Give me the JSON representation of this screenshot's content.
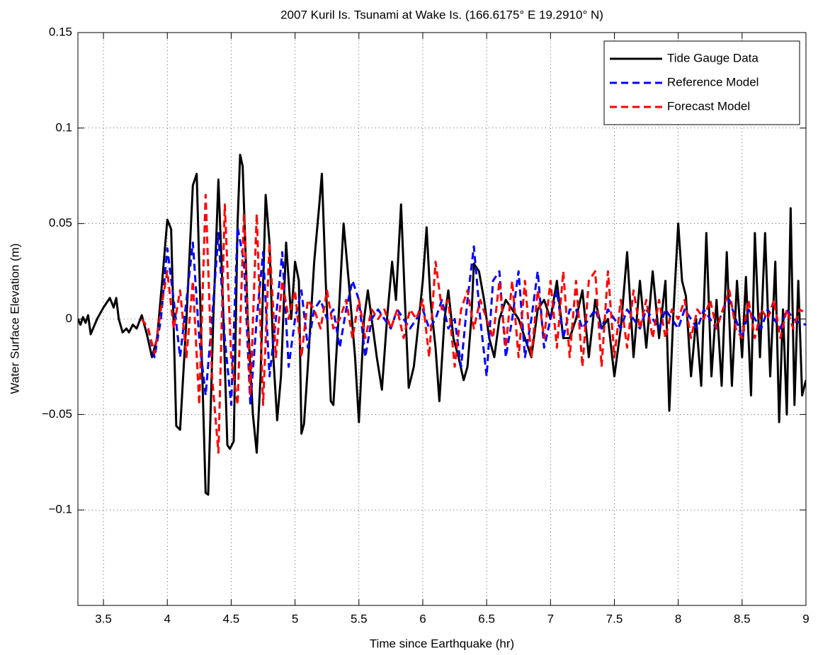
{
  "chart_data": {
    "type": "line",
    "title": "2007 Kuril Is. Tsunami at Wake Is. (166.6175° E 19.2910° N)",
    "x_label": "Time since Earthquake (hr)",
    "y_label": "Water Surface Elevation (m)",
    "xlim": [
      3.3,
      9
    ],
    "xticks": [
      3.5,
      4,
      4.5,
      5,
      5.5,
      6,
      6.5,
      7,
      7.5,
      8,
      8.5,
      9
    ],
    "ylim": [
      -0.15,
      0.15
    ],
    "yticks": [
      {
        "value": -0.1,
        "label": "−0.1"
      },
      {
        "value": -0.05,
        "label": "−0.05"
      },
      0,
      0.05,
      0.1,
      0.15
    ],
    "grid": true,
    "legend": "northeast",
    "series": [
      {
        "name": "Tide Gauge Data",
        "color": "#000000",
        "style": "solid",
        "x": [
          3.3,
          3.32,
          3.34,
          3.36,
          3.38,
          3.4,
          3.45,
          3.5,
          3.55,
          3.58,
          3.6,
          3.62,
          3.65,
          3.68,
          3.7,
          3.73,
          3.76,
          3.8,
          3.84,
          3.88,
          3.92,
          3.96,
          4,
          4.03,
          4.07,
          4.1,
          4.15,
          4.2,
          4.23,
          4.27,
          4.3,
          4.32,
          4.36,
          4.4,
          4.43,
          4.47,
          4.49,
          4.52,
          4.55,
          4.57,
          4.59,
          4.63,
          4.67,
          4.7,
          4.73,
          4.77,
          4.8,
          4.83,
          4.86,
          4.89,
          4.93,
          4.97,
          5,
          5.03,
          5.05,
          5.07,
          5.1,
          5.15,
          5.19,
          5.21,
          5.24,
          5.28,
          5.3,
          5.34,
          5.38,
          5.42,
          5.47,
          5.5,
          5.54,
          5.57,
          5.6,
          5.64,
          5.68,
          5.72,
          5.76,
          5.79,
          5.83,
          5.86,
          5.89,
          5.93,
          5.97,
          6,
          6.03,
          6.06,
          6.1,
          6.13,
          6.17,
          6.2,
          6.24,
          6.28,
          6.32,
          6.35,
          6.38,
          6.4,
          6.44,
          6.48,
          6.52,
          6.56,
          6.6,
          6.65,
          6.7,
          6.75,
          6.8,
          6.85,
          6.9,
          6.95,
          7,
          7.05,
          7.1,
          7.15,
          7.2,
          7.25,
          7.3,
          7.35,
          7.4,
          7.45,
          7.5,
          7.55,
          7.6,
          7.65,
          7.7,
          7.75,
          7.8,
          7.85,
          7.9,
          7.93,
          7.96,
          8,
          8.03,
          8.06,
          8.1,
          8.14,
          8.18,
          8.22,
          8.26,
          8.3,
          8.34,
          8.38,
          8.42,
          8.46,
          8.5,
          8.53,
          8.57,
          8.6,
          8.64,
          8.68,
          8.72,
          8.76,
          8.79,
          8.82,
          8.85,
          8.88,
          8.91,
          8.94,
          8.97,
          9
        ],
        "values": [
          0,
          -0.003,
          0.001,
          -0.002,
          0.002,
          -0.008,
          0,
          0.006,
          0.011,
          0.006,
          0.011,
          0,
          -0.007,
          -0.005,
          -0.007,
          -0.003,
          -0.005,
          0.002,
          -0.008,
          -0.02,
          -0.01,
          0.02,
          0.052,
          0.047,
          -0.056,
          -0.058,
          0,
          0.07,
          0.076,
          -0.02,
          -0.091,
          -0.092,
          0,
          0.073,
          0.02,
          -0.066,
          -0.068,
          -0.064,
          0.05,
          0.086,
          0.08,
          0,
          -0.05,
          -0.07,
          -0.03,
          0.065,
          0.04,
          -0.02,
          -0.053,
          -0.03,
          0.04,
          0,
          0.03,
          0.02,
          -0.06,
          -0.055,
          -0.025,
          0.03,
          0.06,
          0.076,
          0.02,
          -0.043,
          -0.045,
          0,
          0.05,
          0.02,
          -0.02,
          -0.054,
          0,
          0.015,
          0,
          -0.02,
          -0.037,
          0,
          0.03,
          0.01,
          0.06,
          0.01,
          -0.036,
          -0.025,
          0,
          0.02,
          0.048,
          0.01,
          -0.015,
          -0.043,
          0,
          0.015,
          -0.01,
          -0.02,
          -0.032,
          -0.025,
          0,
          0.029,
          0.025,
          0.01,
          -0.01,
          -0.02,
          0,
          0.01,
          0.005,
          0,
          -0.01,
          -0.02,
          0.005,
          0.01,
          0,
          0.02,
          -0.01,
          -0.01,
          0,
          0.015,
          -0.02,
          0.01,
          -0.005,
          0,
          -0.03,
          -0.005,
          0.035,
          -0.02,
          0.02,
          -0.015,
          0.025,
          -0.01,
          0.02,
          -0.048,
          0,
          0.05,
          0.02,
          0.012,
          -0.03,
          0,
          -0.035,
          0.045,
          -0.03,
          0.01,
          -0.035,
          0.035,
          -0.035,
          0.02,
          -0.02,
          0.022,
          -0.04,
          0.045,
          -0.02,
          0.045,
          -0.03,
          0.03,
          -0.054,
          0.005,
          -0.05,
          0.058,
          -0.045,
          0.02,
          -0.04,
          -0.032
        ]
      },
      {
        "name": "Reference Model",
        "color": "#0000ff",
        "style": "dashed",
        "x": [
          3.8,
          3.85,
          3.9,
          3.95,
          4,
          4.05,
          4.1,
          4.15,
          4.2,
          4.25,
          4.3,
          4.35,
          4.4,
          4.45,
          4.5,
          4.55,
          4.6,
          4.65,
          4.7,
          4.75,
          4.8,
          4.85,
          4.9,
          4.95,
          5,
          5.05,
          5.1,
          5.15,
          5.2,
          5.25,
          5.3,
          5.35,
          5.4,
          5.45,
          5.5,
          5.55,
          5.6,
          5.65,
          5.7,
          5.75,
          5.8,
          5.85,
          5.9,
          5.95,
          6,
          6.05,
          6.1,
          6.15,
          6.2,
          6.25,
          6.3,
          6.35,
          6.4,
          6.45,
          6.5,
          6.55,
          6.6,
          6.65,
          6.7,
          6.75,
          6.8,
          6.85,
          6.9,
          6.95,
          7,
          7.05,
          7.1,
          7.15,
          7.2,
          7.25,
          7.3,
          7.35,
          7.4,
          7.45,
          7.5,
          7.55,
          7.6,
          7.65,
          7.7,
          7.75,
          7.8,
          7.85,
          7.9,
          7.95,
          8,
          8.05,
          8.1,
          8.15,
          8.2,
          8.25,
          8.3,
          8.35,
          8.4,
          8.45,
          8.5,
          8.55,
          8.6,
          8.65,
          8.7,
          8.75,
          8.8,
          8.85,
          8.9,
          8.95,
          9
        ],
        "values": [
          0,
          -0.005,
          -0.02,
          0,
          0.037,
          0.01,
          -0.02,
          0.01,
          0.04,
          -0.01,
          -0.04,
          0,
          0.045,
          -0.01,
          -0.045,
          0.048,
          0.03,
          -0.045,
          0,
          0.035,
          -0.03,
          0,
          0.035,
          -0.025,
          0,
          0.015,
          -0.015,
          0.005,
          0.01,
          0,
          0.005,
          -0.015,
          0.005,
          0.02,
          0.01,
          -0.02,
          0,
          0.005,
          0,
          -0.005,
          0.005,
          0,
          -0.005,
          0,
          0.005,
          -0.005,
          0,
          0.01,
          -0.005,
          0,
          -0.025,
          0.01,
          0.038,
          0,
          -0.03,
          0.02,
          0.025,
          -0.02,
          0,
          0.025,
          -0.02,
          0,
          0.025,
          -0.015,
          0,
          0.015,
          -0.01,
          0.005,
          0.005,
          -0.005,
          0,
          0.005,
          -0.005,
          0.005,
          0,
          -0.005,
          0.005,
          0,
          -0.005,
          0.005,
          0,
          -0.005,
          0.005,
          0,
          -0.005,
          0.005,
          0,
          -0.005,
          0.005,
          0,
          -0.005,
          0.005,
          0.01,
          0,
          -0.01,
          0.005,
          0,
          -0.005,
          0.005,
          0,
          -0.005,
          0.005,
          0,
          -0.002,
          -0.003
        ]
      },
      {
        "name": "Forecast Model",
        "color": "#ff0000",
        "style": "dashed",
        "x": [
          3.8,
          3.85,
          3.9,
          3.95,
          4,
          4.05,
          4.1,
          4.15,
          4.2,
          4.25,
          4.3,
          4.35,
          4.4,
          4.45,
          4.5,
          4.55,
          4.6,
          4.65,
          4.7,
          4.75,
          4.8,
          4.85,
          4.9,
          4.95,
          5,
          5.05,
          5.1,
          5.15,
          5.2,
          5.25,
          5.3,
          5.35,
          5.4,
          5.45,
          5.5,
          5.55,
          5.6,
          5.65,
          5.7,
          5.75,
          5.8,
          5.85,
          5.9,
          5.95,
          6,
          6.05,
          6.1,
          6.15,
          6.2,
          6.25,
          6.3,
          6.35,
          6.4,
          6.45,
          6.5,
          6.55,
          6.6,
          6.65,
          6.7,
          6.75,
          6.8,
          6.85,
          6.9,
          6.95,
          7,
          7.05,
          7.1,
          7.15,
          7.2,
          7.25,
          7.3,
          7.35,
          7.4,
          7.45,
          7.5,
          7.55,
          7.6,
          7.65,
          7.7,
          7.75,
          7.8,
          7.85,
          7.9,
          7.95,
          8,
          8.05,
          8.1,
          8.15,
          8.2,
          8.25,
          8.3,
          8.35,
          8.4,
          8.45,
          8.5,
          8.55,
          8.6,
          8.65,
          8.7,
          8.75,
          8.8,
          8.85,
          8.9,
          8.95,
          9
        ],
        "values": [
          0,
          -0.005,
          -0.018,
          0.005,
          0.025,
          -0.005,
          0.015,
          -0.02,
          0.02,
          -0.045,
          0.065,
          -0.03,
          -0.07,
          0.06,
          -0.02,
          -0.045,
          0.055,
          -0.04,
          0.055,
          -0.045,
          0.04,
          -0.02,
          0.02,
          0,
          0.015,
          -0.02,
          0.01,
          0.005,
          -0.005,
          0.015,
          -0.005,
          0,
          0.01,
          -0.01,
          0.01,
          -0.01,
          0.005,
          0,
          0.005,
          -0.005,
          0.005,
          -0.01,
          0.005,
          0,
          0.01,
          -0.02,
          0.03,
          0.005,
          0.01,
          -0.025,
          0.005,
          0.015,
          -0.005,
          0.01,
          0,
          -0.01,
          0.02,
          -0.015,
          0.02,
          -0.02,
          0.02,
          -0.02,
          0.015,
          -0.01,
          0.02,
          -0.015,
          0.025,
          -0.02,
          0.02,
          -0.025,
          0.02,
          0.025,
          -0.025,
          0.025,
          -0.02,
          0.01,
          -0.015,
          0.015,
          -0.005,
          0.01,
          -0.01,
          0.01,
          -0.01,
          0.005,
          0,
          0.01,
          -0.01,
          0.005,
          0,
          0.01,
          -0.005,
          0.005,
          0.015,
          -0.005,
          -0.01,
          0.01,
          -0.01,
          0.005,
          0,
          0.01,
          -0.01,
          0.005,
          -0.005,
          0.005,
          0.003
        ]
      }
    ]
  }
}
